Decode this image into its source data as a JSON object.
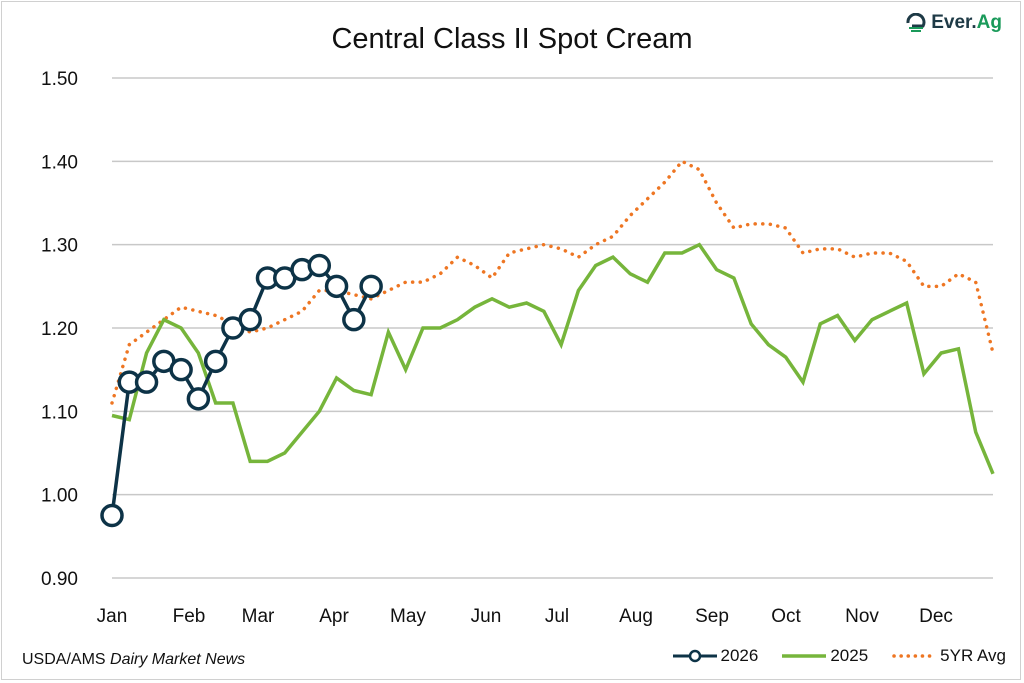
{
  "logo_text": "Ever.Ag",
  "source": {
    "prefix": "USDA/AMS ",
    "italic": "Dairy Market News"
  },
  "colors": {
    "s2026": "#0d3347",
    "s2025": "#76b53b",
    "avg": "#ee7623",
    "grid": "#c8c8c8"
  },
  "chart_data": {
    "type": "line",
    "title": "Central Class II Spot Cream",
    "xlabel": "",
    "ylabel": "",
    "ylim": [
      0.9,
      1.5
    ],
    "yticks": [
      "0.90",
      "1.00",
      "1.10",
      "1.20",
      "1.30",
      "1.40",
      "1.50"
    ],
    "month_labels": [
      "Jan",
      "Feb",
      "Mar",
      "Apr",
      "May",
      "Jun",
      "Jul",
      "Aug",
      "Sep",
      "Oct",
      "Nov",
      "Dec"
    ],
    "x_unit": "week of year (1-52)",
    "grid": true,
    "legend_position": "bottom-right",
    "series": [
      {
        "name": "2026",
        "style": "line-marker",
        "values": [
          0.975,
          1.135,
          1.135,
          1.16,
          1.15,
          1.115,
          1.16,
          1.2,
          1.21,
          1.26,
          1.26,
          1.27,
          1.275,
          1.25,
          1.21,
          1.25
        ]
      },
      {
        "name": "2025",
        "style": "line",
        "values": [
          1.095,
          1.09,
          1.17,
          1.21,
          1.2,
          1.17,
          1.11,
          1.11,
          1.04,
          1.04,
          1.05,
          1.075,
          1.1,
          1.14,
          1.125,
          1.12,
          1.195,
          1.15,
          1.2,
          1.2,
          1.21,
          1.225,
          1.235,
          1.225,
          1.23,
          1.22,
          1.18,
          1.245,
          1.275,
          1.285,
          1.265,
          1.255,
          1.29,
          1.29,
          1.3,
          1.27,
          1.26,
          1.205,
          1.18,
          1.165,
          1.135,
          1.205,
          1.215,
          1.185,
          1.21,
          1.22,
          1.23,
          1.145,
          1.17,
          1.175,
          1.075,
          1.025
        ]
      },
      {
        "name": "5YR Avg",
        "style": "dotted",
        "values": [
          1.11,
          1.18,
          1.195,
          1.21,
          1.225,
          1.22,
          1.215,
          1.205,
          1.195,
          1.2,
          1.21,
          1.22,
          1.245,
          1.245,
          1.24,
          1.235,
          1.245,
          1.255,
          1.255,
          1.265,
          1.285,
          1.275,
          1.26,
          1.29,
          1.295,
          1.3,
          1.295,
          1.285,
          1.3,
          1.31,
          1.335,
          1.355,
          1.375,
          1.4,
          1.39,
          1.35,
          1.32,
          1.325,
          1.325,
          1.32,
          1.29,
          1.295,
          1.295,
          1.285,
          1.29,
          1.29,
          1.28,
          1.25,
          1.25,
          1.265,
          1.255,
          1.17
        ]
      }
    ]
  }
}
